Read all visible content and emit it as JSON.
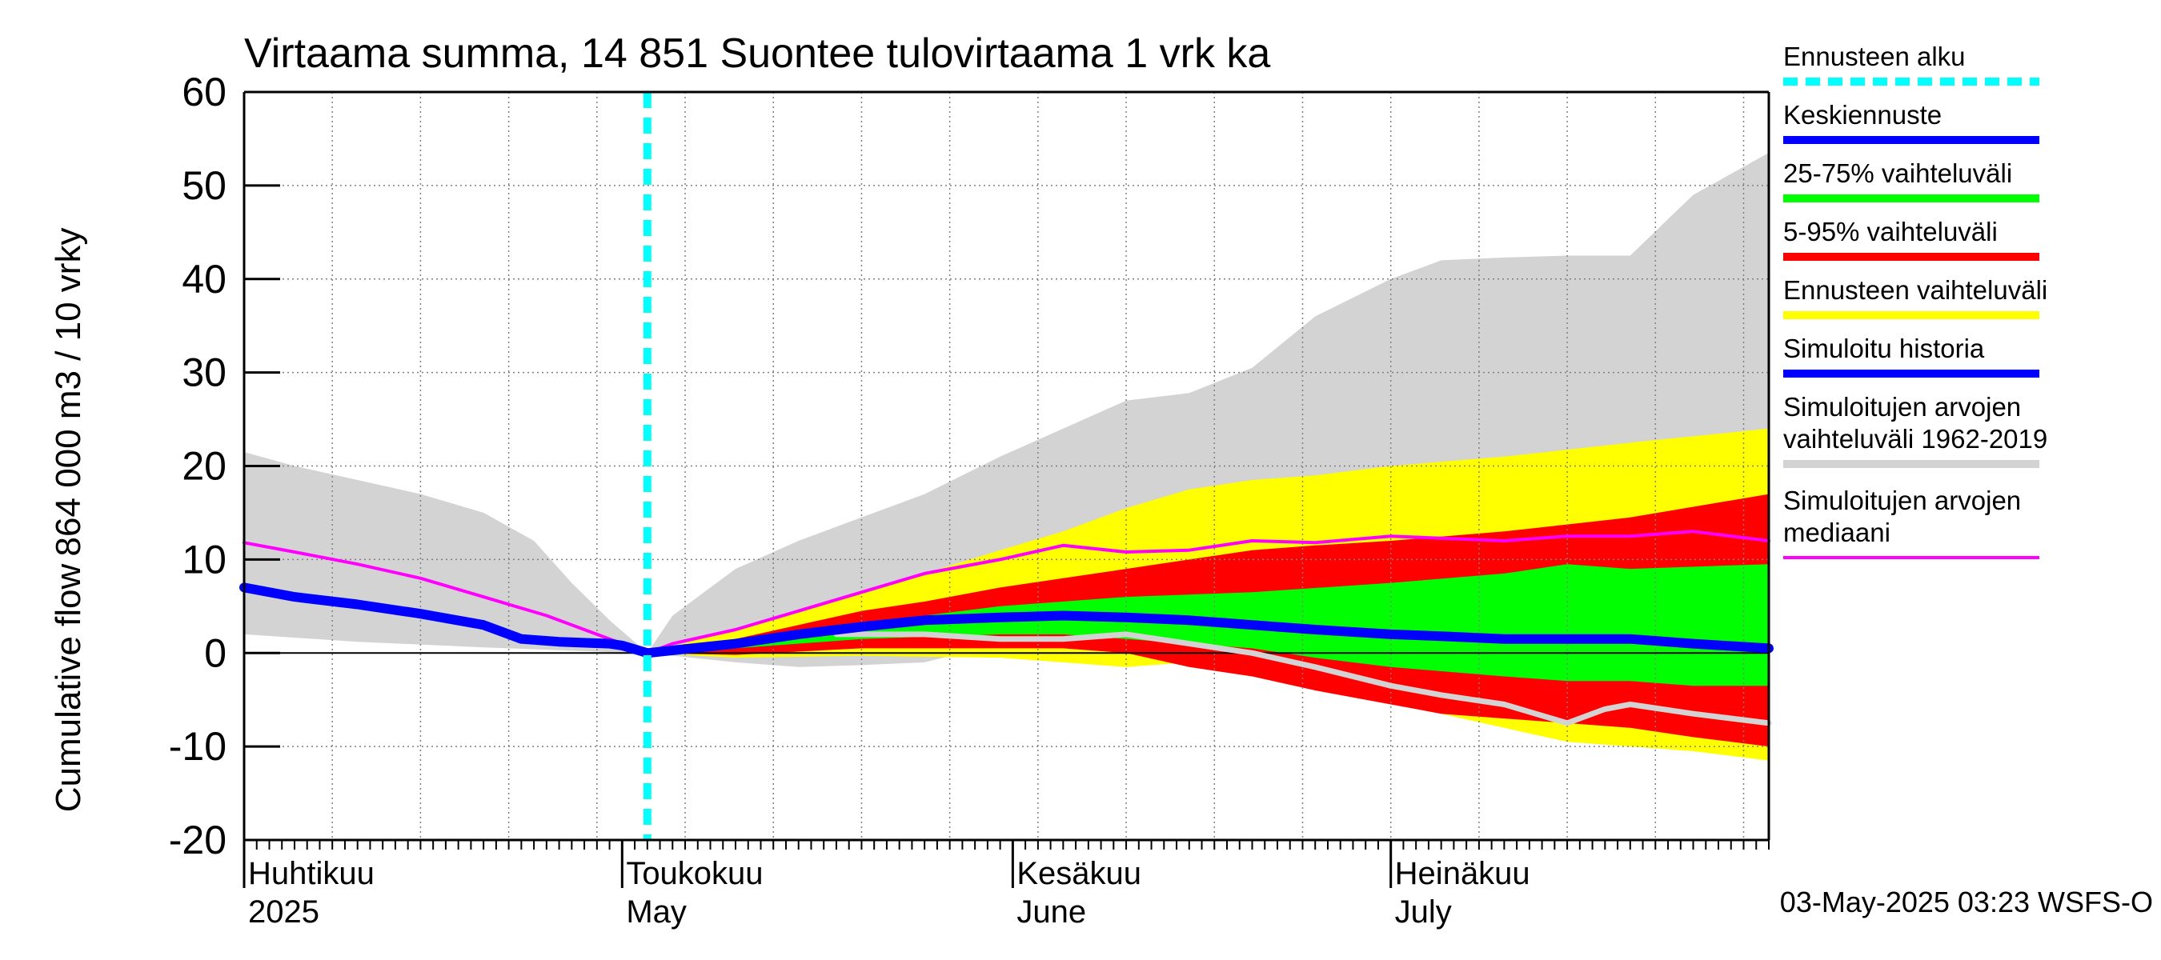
{
  "chart_data": {
    "type": "area",
    "title": "Virtaama summa, 14 851 Suontee tulovirtaama 1 vrk ka",
    "ylabel_top": "864 000 m3 / 10 vrky",
    "ylabel_bottom": "Cumulative flow",
    "ylim": [
      -20,
      60
    ],
    "y_ticks": [
      -20,
      -10,
      0,
      10,
      20,
      30,
      40,
      50,
      60
    ],
    "x_start": "2025-04-01",
    "x_end": "2025-07-31",
    "forecast_start": "2025-05-03",
    "grid": true,
    "month_labels": [
      {
        "fi": "Huhtikuu",
        "en": "2025",
        "date": "2025-04-01"
      },
      {
        "fi": "Toukokuu",
        "en": "May",
        "date": "2025-05-01"
      },
      {
        "fi": "Kesäkuu",
        "en": "June",
        "date": "2025-06-01"
      },
      {
        "fi": "Heinäkuu",
        "en": "July",
        "date": "2025-07-01"
      }
    ],
    "series": {
      "sim_range": {
        "name": "Simuloitujen arvojen vaihteluväli 1962-2019",
        "color": "#d3d3d3",
        "upper": [
          [
            "2025-04-01",
            21.5
          ],
          [
            "2025-04-05",
            20.0
          ],
          [
            "2025-04-10",
            18.5
          ],
          [
            "2025-04-15",
            17.0
          ],
          [
            "2025-04-20",
            15.0
          ],
          [
            "2025-04-24",
            12.0
          ],
          [
            "2025-04-27",
            7.5
          ],
          [
            "2025-04-30",
            3.5
          ],
          [
            "2025-05-03",
            0.0
          ],
          [
            "2025-05-05",
            4.0
          ],
          [
            "2025-05-10",
            9.0
          ],
          [
            "2025-05-15",
            12.0
          ],
          [
            "2025-05-20",
            14.5
          ],
          [
            "2025-05-25",
            17.0
          ],
          [
            "2025-05-31",
            21.0
          ],
          [
            "2025-06-05",
            24.0
          ],
          [
            "2025-06-10",
            27.0
          ],
          [
            "2025-06-15",
            27.8
          ],
          [
            "2025-06-20",
            30.5
          ],
          [
            "2025-06-25",
            36.0
          ],
          [
            "2025-07-01",
            40.0
          ],
          [
            "2025-07-05",
            42.0
          ],
          [
            "2025-07-10",
            42.3
          ],
          [
            "2025-07-15",
            42.5
          ],
          [
            "2025-07-20",
            42.5
          ],
          [
            "2025-07-25",
            49.0
          ],
          [
            "2025-07-31",
            53.5
          ]
        ],
        "lower": [
          [
            "2025-04-01",
            2.0
          ],
          [
            "2025-04-10",
            1.2
          ],
          [
            "2025-04-20",
            0.6
          ],
          [
            "2025-04-30",
            0.1
          ],
          [
            "2025-05-03",
            0.0
          ],
          [
            "2025-05-10",
            -1.0
          ],
          [
            "2025-05-15",
            -1.5
          ],
          [
            "2025-05-20",
            -1.3
          ],
          [
            "2025-05-25",
            -1.0
          ],
          [
            "2025-05-31",
            1.0
          ],
          [
            "2025-06-10",
            1.5
          ],
          [
            "2025-06-20",
            1.0
          ],
          [
            "2025-07-01",
            0.8
          ],
          [
            "2025-07-15",
            0.5
          ],
          [
            "2025-07-31",
            0.3
          ]
        ]
      },
      "forecast_range": {
        "name": "Ennusteen vaihteluväli",
        "color": "#ffff00",
        "upper": [
          [
            "2025-05-03",
            0.0
          ],
          [
            "2025-05-10",
            2.5
          ],
          [
            "2025-05-15",
            4.5
          ],
          [
            "2025-05-20",
            6.5
          ],
          [
            "2025-05-25",
            8.5
          ],
          [
            "2025-05-31",
            11.0
          ],
          [
            "2025-06-05",
            13.0
          ],
          [
            "2025-06-10",
            15.5
          ],
          [
            "2025-06-15",
            17.5
          ],
          [
            "2025-06-20",
            18.5
          ],
          [
            "2025-06-25",
            19.0
          ],
          [
            "2025-07-01",
            20.0
          ],
          [
            "2025-07-10",
            21.0
          ],
          [
            "2025-07-20",
            22.5
          ],
          [
            "2025-07-31",
            24.0
          ]
        ],
        "lower": [
          [
            "2025-05-03",
            0.0
          ],
          [
            "2025-05-10",
            -0.5
          ],
          [
            "2025-05-20",
            -0.3
          ],
          [
            "2025-05-31",
            -0.5
          ],
          [
            "2025-06-05",
            -1.0
          ],
          [
            "2025-06-10",
            -1.5
          ],
          [
            "2025-06-15",
            -1.0
          ],
          [
            "2025-06-20",
            -1.5
          ],
          [
            "2025-06-25",
            -3.0
          ],
          [
            "2025-07-01",
            -5.0
          ],
          [
            "2025-07-05",
            -6.5
          ],
          [
            "2025-07-10",
            -8.0
          ],
          [
            "2025-07-15",
            -9.5
          ],
          [
            "2025-07-20",
            -10.0
          ],
          [
            "2025-07-25",
            -10.5
          ],
          [
            "2025-07-31",
            -11.5
          ]
        ]
      },
      "p5_95": {
        "name": "5-95% vaihteluväli",
        "color": "#ff0000",
        "upper": [
          [
            "2025-05-03",
            0.0
          ],
          [
            "2025-05-10",
            1.5
          ],
          [
            "2025-05-15",
            3.0
          ],
          [
            "2025-05-20",
            4.5
          ],
          [
            "2025-05-25",
            5.5
          ],
          [
            "2025-05-31",
            7.0
          ],
          [
            "2025-06-05",
            8.0
          ],
          [
            "2025-06-10",
            9.0
          ],
          [
            "2025-06-15",
            10.0
          ],
          [
            "2025-06-20",
            11.0
          ],
          [
            "2025-06-25",
            11.5
          ],
          [
            "2025-07-01",
            12.0
          ],
          [
            "2025-07-10",
            13.0
          ],
          [
            "2025-07-20",
            14.5
          ],
          [
            "2025-07-31",
            17.0
          ]
        ],
        "lower": [
          [
            "2025-05-03",
            0.0
          ],
          [
            "2025-05-10",
            -0.2
          ],
          [
            "2025-05-20",
            0.5
          ],
          [
            "2025-05-31",
            0.5
          ],
          [
            "2025-06-05",
            0.5
          ],
          [
            "2025-06-10",
            0.0
          ],
          [
            "2025-06-15",
            -1.5
          ],
          [
            "2025-06-20",
            -2.5
          ],
          [
            "2025-06-25",
            -4.0
          ],
          [
            "2025-07-01",
            -5.5
          ],
          [
            "2025-07-05",
            -6.5
          ],
          [
            "2025-07-10",
            -7.0
          ],
          [
            "2025-07-15",
            -7.5
          ],
          [
            "2025-07-20",
            -8.0
          ],
          [
            "2025-07-25",
            -9.0
          ],
          [
            "2025-07-31",
            -10.0
          ]
        ]
      },
      "p25_75": {
        "name": "25-75% vaihteluväli",
        "color": "#00ff00",
        "upper": [
          [
            "2025-05-03",
            0.0
          ],
          [
            "2025-05-10",
            1.2
          ],
          [
            "2025-05-15",
            2.0
          ],
          [
            "2025-05-20",
            3.0
          ],
          [
            "2025-05-25",
            4.0
          ],
          [
            "2025-05-31",
            5.0
          ],
          [
            "2025-06-10",
            6.0
          ],
          [
            "2025-06-20",
            6.5
          ],
          [
            "2025-07-01",
            7.5
          ],
          [
            "2025-07-10",
            8.5
          ],
          [
            "2025-07-15",
            9.5
          ],
          [
            "2025-07-20",
            9.0
          ],
          [
            "2025-07-31",
            9.5
          ]
        ],
        "lower": [
          [
            "2025-05-03",
            0.0
          ],
          [
            "2025-05-10",
            0.5
          ],
          [
            "2025-05-20",
            1.5
          ],
          [
            "2025-05-31",
            2.0
          ],
          [
            "2025-06-05",
            2.0
          ],
          [
            "2025-06-10",
            1.5
          ],
          [
            "2025-06-20",
            0.5
          ],
          [
            "2025-06-25",
            -0.5
          ],
          [
            "2025-07-01",
            -1.5
          ],
          [
            "2025-07-10",
            -2.5
          ],
          [
            "2025-07-15",
            -3.0
          ],
          [
            "2025-07-20",
            -3.0
          ],
          [
            "2025-07-25",
            -3.5
          ],
          [
            "2025-07-31",
            -3.5
          ]
        ]
      },
      "sim_median": {
        "name": "Simuloitujen arvojen mediaani",
        "color": "#ff00ff",
        "points": [
          [
            "2025-04-01",
            11.8
          ],
          [
            "2025-04-05",
            10.8
          ],
          [
            "2025-04-10",
            9.5
          ],
          [
            "2025-04-15",
            8.0
          ],
          [
            "2025-04-20",
            6.0
          ],
          [
            "2025-04-25",
            4.0
          ],
          [
            "2025-04-30",
            1.5
          ],
          [
            "2025-05-03",
            0.0
          ],
          [
            "2025-05-05",
            1.0
          ],
          [
            "2025-05-10",
            2.5
          ],
          [
            "2025-05-15",
            4.5
          ],
          [
            "2025-05-20",
            6.5
          ],
          [
            "2025-05-25",
            8.5
          ],
          [
            "2025-05-31",
            10.0
          ],
          [
            "2025-06-05",
            11.5
          ],
          [
            "2025-06-10",
            10.8
          ],
          [
            "2025-06-15",
            11.0
          ],
          [
            "2025-06-20",
            12.0
          ],
          [
            "2025-06-25",
            11.8
          ],
          [
            "2025-07-01",
            12.5
          ],
          [
            "2025-07-10",
            12.0
          ],
          [
            "2025-07-15",
            12.5
          ],
          [
            "2025-07-20",
            12.5
          ],
          [
            "2025-07-25",
            13.0
          ],
          [
            "2025-07-31",
            12.0
          ]
        ]
      },
      "history_dry": {
        "name": "",
        "color": "#d3d3d3",
        "points": [
          [
            "2025-05-18",
            2.0
          ],
          [
            "2025-05-25",
            2.0
          ],
          [
            "2025-05-31",
            1.5
          ],
          [
            "2025-06-05",
            1.5
          ],
          [
            "2025-06-10",
            2.0
          ],
          [
            "2025-06-15",
            1.0
          ],
          [
            "2025-06-20",
            0.0
          ],
          [
            "2025-06-25",
            -1.5
          ],
          [
            "2025-07-01",
            -3.5
          ],
          [
            "2025-07-05",
            -4.5
          ],
          [
            "2025-07-10",
            -5.5
          ],
          [
            "2025-07-15",
            -7.5
          ],
          [
            "2025-07-18",
            -6.0
          ],
          [
            "2025-07-20",
            -5.5
          ],
          [
            "2025-07-25",
            -6.5
          ],
          [
            "2025-07-31",
            -7.5
          ]
        ]
      },
      "sim_history": {
        "name": "Simuloitu historia",
        "color": "#0000ff",
        "points": [
          [
            "2025-04-01",
            7.0
          ],
          [
            "2025-04-05",
            6.0
          ],
          [
            "2025-04-10",
            5.2
          ],
          [
            "2025-04-15",
            4.2
          ],
          [
            "2025-04-20",
            3.0
          ],
          [
            "2025-04-23",
            1.5
          ],
          [
            "2025-04-26",
            1.2
          ],
          [
            "2025-04-30",
            1.0
          ],
          [
            "2025-05-01",
            0.8
          ],
          [
            "2025-05-03",
            0.0
          ]
        ]
      },
      "forecast_mean": {
        "name": "Keskiennuste",
        "color": "#0000ff",
        "points": [
          [
            "2025-05-03",
            0.0
          ],
          [
            "2025-05-10",
            1.0
          ],
          [
            "2025-05-15",
            2.0
          ],
          [
            "2025-05-20",
            2.8
          ],
          [
            "2025-05-25",
            3.5
          ],
          [
            "2025-05-31",
            3.8
          ],
          [
            "2025-06-05",
            4.0
          ],
          [
            "2025-06-10",
            3.8
          ],
          [
            "2025-06-15",
            3.5
          ],
          [
            "2025-06-20",
            3.0
          ],
          [
            "2025-06-25",
            2.5
          ],
          [
            "2025-07-01",
            2.0
          ],
          [
            "2025-07-05",
            1.8
          ],
          [
            "2025-07-10",
            1.5
          ],
          [
            "2025-07-15",
            1.5
          ],
          [
            "2025-07-20",
            1.5
          ],
          [
            "2025-07-25",
            1.0
          ],
          [
            "2025-07-31",
            0.5
          ]
        ]
      }
    },
    "legend": [
      {
        "label": "Ennusteen alku",
        "color": "#00ffff",
        "style": "dashed"
      },
      {
        "label": "Keskiennuste",
        "color": "#0000ff",
        "style": "thick"
      },
      {
        "label": "25-75% vaihteluväli",
        "color": "#00ff00",
        "style": "thick"
      },
      {
        "label": "5-95% vaihteluväli",
        "color": "#ff0000",
        "style": "thick"
      },
      {
        "label": "Ennusteen vaihteluväli",
        "color": "#ffff00",
        "style": "thick"
      },
      {
        "label": "Simuloitu historia",
        "color": "#0000ff",
        "style": "thick"
      },
      {
        "label": "Simuloitujen arvojen",
        "label2": "vaihteluväli 1962-2019",
        "color": "#d3d3d3",
        "style": "thick"
      },
      {
        "label": "Simuloitujen arvojen",
        "label2": "mediaani",
        "color": "#ff00ff",
        "style": "thin"
      }
    ],
    "footer": "03-May-2025 03:23 WSFS-O"
  }
}
